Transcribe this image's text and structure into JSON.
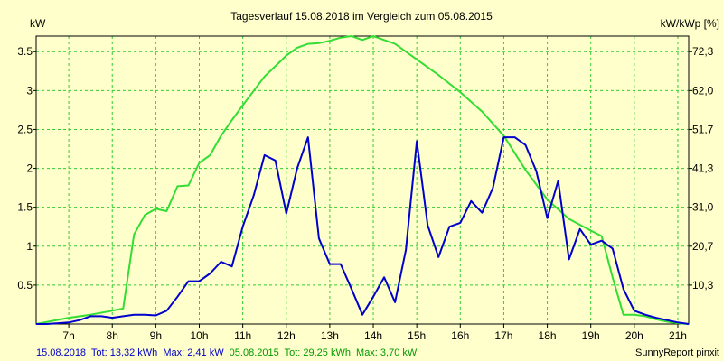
{
  "chart_data": {
    "type": "line",
    "title": "Tagesverlauf 15.08.2018 im Vergleich zum 05.08.2015",
    "ylabel_left": "kW",
    "ylabel_right": "kW/kWp [%]",
    "x_ticks": [
      "7h",
      "8h",
      "9h",
      "10h",
      "11h",
      "12h",
      "13h",
      "14h",
      "15h",
      "16h",
      "17h",
      "18h",
      "19h",
      "20h",
      "21h"
    ],
    "x_range_hours": [
      6.25,
      21.25
    ],
    "y_range_kw": [
      0,
      3.7
    ],
    "y_ticks_left": [
      "0.5",
      "1",
      "1.5",
      "2",
      "2.5",
      "3",
      "3.5"
    ],
    "y_ticks_right": [
      "10,3",
      "20,7",
      "31,0",
      "41,3",
      "51,7",
      "62,0",
      "72,3"
    ],
    "grid": true,
    "series": [
      {
        "label": "15.08.2018",
        "color": "#0000cc",
        "x": [
          6.25,
          6.5,
          7.0,
          7.25,
          7.5,
          7.75,
          8.0,
          8.25,
          8.5,
          8.75,
          9.0,
          9.25,
          9.5,
          9.75,
          10.0,
          10.25,
          10.5,
          10.75,
          11.0,
          11.25,
          11.5,
          11.75,
          12.0,
          12.25,
          12.5,
          12.75,
          13.0,
          13.25,
          13.5,
          13.75,
          14.0,
          14.25,
          14.5,
          14.75,
          15.0,
          15.25,
          15.5,
          15.75,
          16.0,
          16.25,
          16.5,
          16.75,
          17.0,
          17.25,
          17.5,
          17.75,
          18.0,
          18.25,
          18.5,
          18.75,
          19.0,
          19.25,
          19.5,
          19.75,
          20.0,
          20.25,
          20.5,
          20.75,
          21.0,
          21.25
        ],
        "values": [
          0,
          0,
          0.02,
          0.05,
          0.1,
          0.1,
          0.08,
          0.1,
          0.12,
          0.12,
          0.11,
          0.17,
          0.35,
          0.55,
          0.55,
          0.65,
          0.8,
          0.74,
          1.25,
          1.65,
          2.17,
          2.1,
          1.42,
          2.0,
          2.4,
          1.1,
          0.77,
          0.77,
          0.45,
          0.12,
          0.35,
          0.6,
          0.28,
          0.95,
          2.35,
          1.27,
          0.86,
          1.25,
          1.3,
          1.58,
          1.43,
          1.75,
          2.4,
          2.4,
          2.3,
          1.96,
          1.36,
          1.84,
          0.83,
          1.22,
          1.02,
          1.07,
          0.97,
          0.45,
          0.17,
          0.12,
          0.08,
          0.05,
          0.02,
          0
        ],
        "total": "Tot: 13,32 kWh",
        "max": "Max: 2,41 kW"
      },
      {
        "label": "05.08.2015",
        "color": "#33dd33",
        "x": [
          6.25,
          7.0,
          7.5,
          8.0,
          8.25,
          8.5,
          8.75,
          9.0,
          9.25,
          9.5,
          9.75,
          10.0,
          10.25,
          10.5,
          10.75,
          11.0,
          11.5,
          12.0,
          12.25,
          12.5,
          12.75,
          13.0,
          13.25,
          13.5,
          13.75,
          14.0,
          14.25,
          14.5,
          14.75,
          15.0,
          15.5,
          16.0,
          16.5,
          17.0,
          17.5,
          18.0,
          18.5,
          19.0,
          19.25,
          19.5,
          19.75,
          20.0,
          20.25,
          20.5,
          20.75,
          21.0,
          21.25
        ],
        "values": [
          0,
          0.08,
          0.12,
          0.17,
          0.2,
          1.15,
          1.4,
          1.48,
          1.45,
          1.77,
          1.78,
          2.07,
          2.17,
          2.42,
          2.62,
          2.81,
          3.18,
          3.45,
          3.55,
          3.6,
          3.61,
          3.64,
          3.68,
          3.7,
          3.65,
          3.7,
          3.65,
          3.6,
          3.5,
          3.4,
          3.2,
          2.98,
          2.73,
          2.42,
          1.98,
          1.6,
          1.35,
          1.2,
          1.13,
          0.6,
          0.12,
          0.12,
          0.1,
          0.06,
          0.03,
          0.01,
          0
        ],
        "total": "Tot: 29,25 kWh",
        "max": "Max: 3,70 kW"
      }
    ]
  },
  "footer": {
    "series1_label": "15.08.2018",
    "series1_tot": "Tot: 13,32 kWh",
    "series1_max": "Max: 2,41 kW",
    "series2_label": "05.08.2015",
    "series2_tot": "Tot: 29,25 kWh",
    "series2_max": "Max: 3,70 kW",
    "credit": "SunnyReport pinxit"
  }
}
